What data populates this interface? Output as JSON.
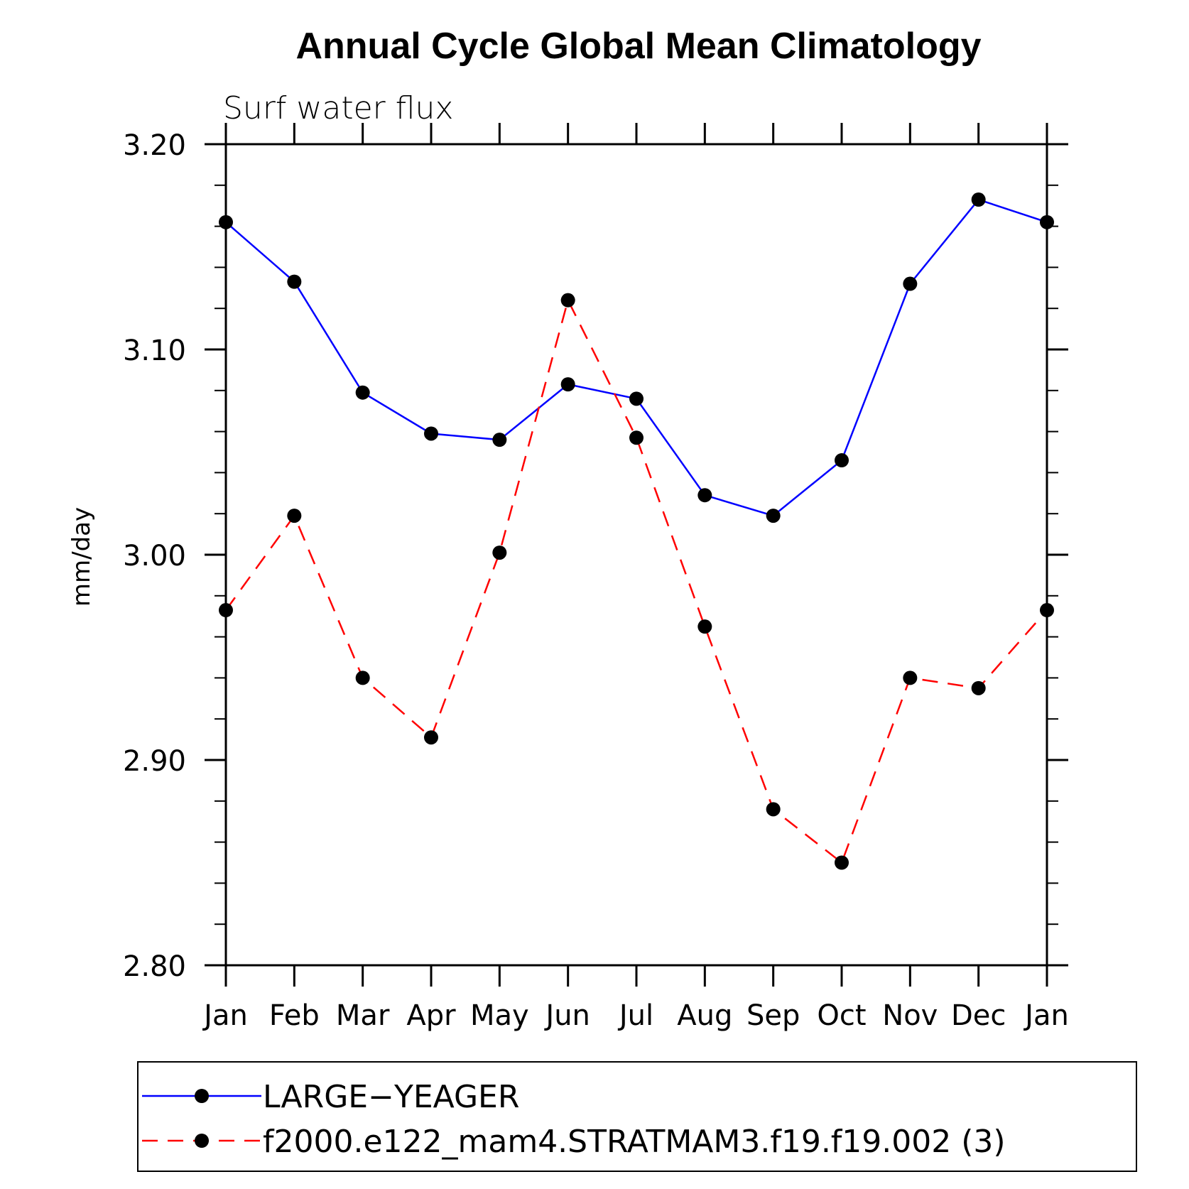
{
  "chart_data": {
    "type": "line",
    "title": "Annual Cycle Global Mean Climatology",
    "subtitle": "Surf water flux",
    "xlabel": "",
    "ylabel": "mm/day",
    "categories": [
      "Jan",
      "Feb",
      "Mar",
      "Apr",
      "May",
      "Jun",
      "Jul",
      "Aug",
      "Sep",
      "Oct",
      "Nov",
      "Dec",
      "Jan"
    ],
    "ylim": [
      2.8,
      3.2
    ],
    "yticks": [
      2.8,
      2.9,
      3.0,
      3.1,
      3.2
    ],
    "ytick_labels": [
      "2.80",
      "2.90",
      "3.00",
      "3.10",
      "3.20"
    ],
    "grid": false,
    "legend_position": "bottom",
    "series": [
      {
        "name": "LARGE−YEAGER",
        "color": "#0000ff",
        "line_style": "solid",
        "marker": "filled-circle",
        "values": [
          3.162,
          3.133,
          3.079,
          3.059,
          3.056,
          3.083,
          3.076,
          3.029,
          3.019,
          3.046,
          3.132,
          3.173,
          3.162
        ]
      },
      {
        "name": "f2000.e122_mam4.STRATMAM3.f19.f19.002 (3)",
        "color": "#ff0000",
        "line_style": "dashed",
        "marker": "filled-circle",
        "values": [
          2.973,
          3.019,
          2.94,
          2.911,
          3.001,
          3.124,
          3.057,
          2.965,
          2.876,
          2.85,
          2.94,
          2.935,
          2.973
        ]
      }
    ]
  }
}
